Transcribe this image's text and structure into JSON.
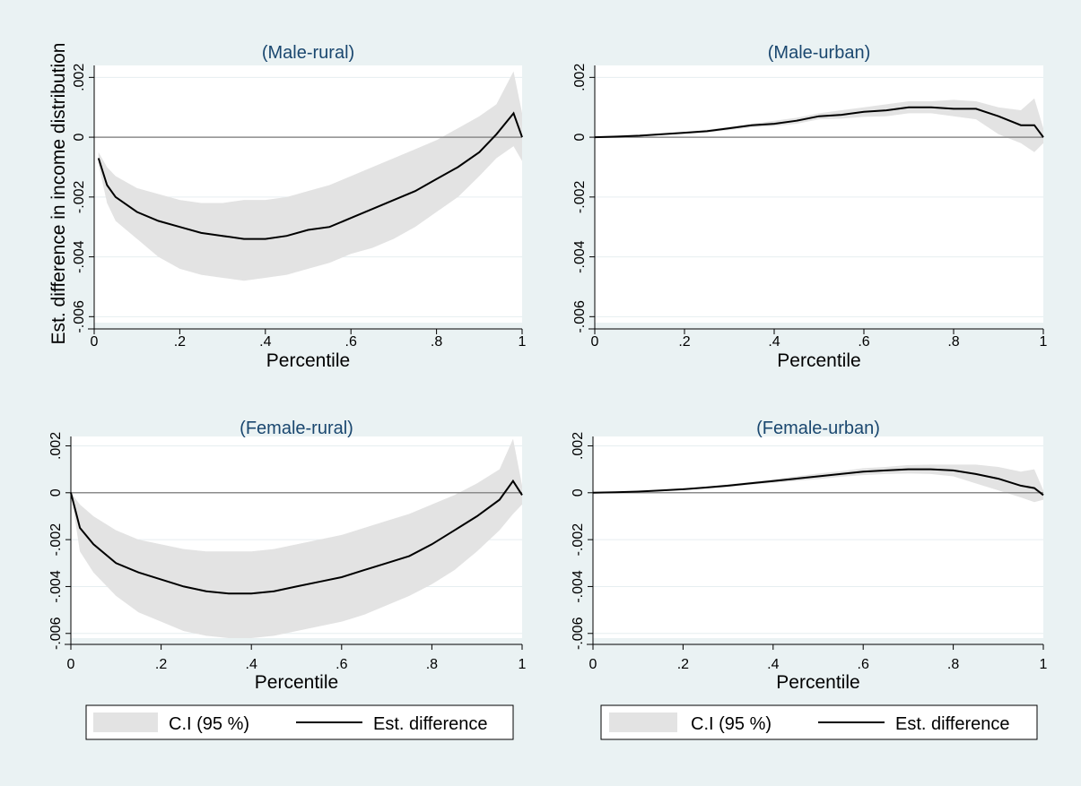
{
  "ylabel_shared": "Est. difference in income distribution",
  "colors": {
    "background": "#eaf2f3",
    "plot_bg": "#ffffff",
    "ci_band": "#e3e3e3",
    "line": "#000000",
    "zero_line": "#8c8c8c",
    "title": "#1a476f",
    "grid": "#e6eef0"
  },
  "chart_data": [
    {
      "type": "line",
      "title": "(Male-rural)",
      "xlabel": "Percentile",
      "ylabel": "Est. difference in income distribution",
      "xlim": [
        0,
        1
      ],
      "ylim": [
        -0.0062,
        0.0024
      ],
      "xticks": [
        0,
        0.2,
        0.4,
        0.6,
        0.8,
        1
      ],
      "xtick_labels": [
        "0",
        ".2",
        ".4",
        ".6",
        ".8",
        "1"
      ],
      "yticks": [
        -0.006,
        -0.004,
        -0.002,
        0,
        0.002
      ],
      "ytick_labels": [
        "-.006",
        "-.004",
        "-.002",
        "0",
        ".002"
      ],
      "grid": true,
      "x": [
        0.01,
        0.03,
        0.05,
        0.1,
        0.15,
        0.2,
        0.25,
        0.3,
        0.35,
        0.4,
        0.45,
        0.5,
        0.55,
        0.6,
        0.65,
        0.7,
        0.75,
        0.8,
        0.85,
        0.9,
        0.94,
        0.98,
        1
      ],
      "series": [
        {
          "type": "line",
          "values": [
            -0.0007,
            -0.0016,
            -0.002,
            -0.0025,
            -0.0028,
            -0.003,
            -0.0032,
            -0.0033,
            -0.0034,
            -0.0034,
            -0.0033,
            -0.0031,
            -0.003,
            -0.0027,
            -0.0024,
            -0.0021,
            -0.0018,
            -0.0014,
            -0.001,
            -0.0005,
            0.0001,
            0.0008,
            0
          ]
        },
        {
          "type": "ci_upper",
          "values": [
            -0.0005,
            -0.001,
            -0.0013,
            -0.0017,
            -0.0019,
            -0.0021,
            -0.0022,
            -0.0022,
            -0.0021,
            -0.0021,
            -0.002,
            -0.0018,
            -0.0016,
            -0.0013,
            -0.001,
            -0.0007,
            -0.0004,
            -0.0001,
            0.0003,
            0.0007,
            0.0011,
            0.0022,
            0.0008
          ]
        },
        {
          "type": "ci_lower",
          "values": [
            -0.0009,
            -0.0022,
            -0.0028,
            -0.0034,
            -0.004,
            -0.0044,
            -0.0046,
            -0.0047,
            -0.0048,
            -0.0047,
            -0.0046,
            -0.0044,
            -0.0042,
            -0.0039,
            -0.0037,
            -0.0034,
            -0.003,
            -0.0025,
            -0.002,
            -0.0013,
            -0.0007,
            -0.0003,
            -0.0008
          ]
        }
      ],
      "legend": [
        "C.I (95 %)",
        "Est. difference"
      ]
    },
    {
      "type": "line",
      "title": "(Male-urban)",
      "xlabel": "Percentile",
      "ylabel": "",
      "xlim": [
        0,
        1
      ],
      "ylim": [
        -0.0062,
        0.0024
      ],
      "xticks": [
        0,
        0.2,
        0.4,
        0.6,
        0.8,
        1
      ],
      "xtick_labels": [
        "0",
        ".2",
        ".4",
        ".6",
        ".8",
        "1"
      ],
      "yticks": [
        -0.006,
        -0.004,
        -0.002,
        0,
        0.002
      ],
      "ytick_labels": [
        "-.006",
        "-.004",
        "-.002",
        "0",
        ".002"
      ],
      "grid": true,
      "x": [
        0,
        0.05,
        0.1,
        0.15,
        0.2,
        0.25,
        0.3,
        0.35,
        0.4,
        0.45,
        0.5,
        0.55,
        0.6,
        0.65,
        0.7,
        0.75,
        0.8,
        0.85,
        0.9,
        0.95,
        0.98,
        1
      ],
      "series": [
        {
          "type": "line",
          "values": [
            0,
            2e-05,
            5e-05,
            0.0001,
            0.00015,
            0.0002,
            0.0003,
            0.0004,
            0.00045,
            0.00055,
            0.0007,
            0.00075,
            0.00085,
            0.0009,
            0.001,
            0.001,
            0.00095,
            0.00095,
            0.0007,
            0.0004,
            0.0004,
            0
          ]
        },
        {
          "type": "ci_upper",
          "values": [
            0,
            3e-05,
            7e-05,
            0.00012,
            0.00018,
            0.00025,
            0.00035,
            0.00045,
            0.00055,
            0.00065,
            0.0008,
            0.0009,
            0.001,
            0.0011,
            0.0012,
            0.0012,
            0.00125,
            0.0012,
            0.001,
            0.0009,
            0.0013,
            0.0003
          ]
        },
        {
          "type": "ci_lower",
          "values": [
            0,
            1e-05,
            3e-05,
            8e-05,
            0.00012,
            0.00016,
            0.00024,
            0.00033,
            0.00037,
            0.00045,
            0.0006,
            0.00062,
            0.00068,
            0.0007,
            0.0008,
            0.0008,
            0.0007,
            0.0006,
            0.0001,
            -0.0002,
            -0.0005,
            -0.0002
          ]
        }
      ],
      "legend": [
        "C.I (95 %)",
        "Est. difference"
      ]
    },
    {
      "type": "line",
      "title": "(Female-rural)",
      "xlabel": "Percentile",
      "ylabel": "",
      "xlim": [
        0,
        1
      ],
      "ylim": [
        -0.0062,
        0.0024
      ],
      "xticks": [
        0,
        0.2,
        0.4,
        0.6,
        0.8,
        1
      ],
      "xtick_labels": [
        "0",
        ".2",
        ".4",
        ".6",
        ".8",
        "1"
      ],
      "yticks": [
        -0.006,
        -0.004,
        -0.002,
        0,
        0.002
      ],
      "ytick_labels": [
        "-.006",
        "-.004",
        "-.002",
        "0",
        ".002"
      ],
      "grid": true,
      "x": [
        0,
        0.02,
        0.05,
        0.1,
        0.15,
        0.2,
        0.25,
        0.3,
        0.35,
        0.4,
        0.45,
        0.5,
        0.55,
        0.6,
        0.65,
        0.7,
        0.75,
        0.8,
        0.85,
        0.9,
        0.95,
        0.98,
        1
      ],
      "series": [
        {
          "type": "line",
          "values": [
            0,
            -0.0015,
            -0.0022,
            -0.003,
            -0.0034,
            -0.0037,
            -0.004,
            -0.0042,
            -0.0043,
            -0.0043,
            -0.0042,
            -0.004,
            -0.0038,
            -0.0036,
            -0.0033,
            -0.003,
            -0.0027,
            -0.0022,
            -0.0016,
            -0.001,
            -0.0003,
            0.0005,
            -0.0001
          ]
        },
        {
          "type": "ci_upper",
          "values": [
            0,
            -0.0005,
            -0.001,
            -0.0016,
            -0.002,
            -0.0022,
            -0.0024,
            -0.0025,
            -0.0025,
            -0.0025,
            -0.0024,
            -0.0022,
            -0.002,
            -0.0018,
            -0.0015,
            -0.0012,
            -0.0009,
            -0.0005,
            -0.0001,
            0.0004,
            0.001,
            0.0023,
            0.0003
          ]
        },
        {
          "type": "ci_lower",
          "values": [
            0,
            -0.0025,
            -0.0034,
            -0.0044,
            -0.0051,
            -0.0055,
            -0.0059,
            -0.0061,
            -0.0062,
            -0.0062,
            -0.0061,
            -0.0059,
            -0.0057,
            -0.0055,
            -0.0052,
            -0.0048,
            -0.0044,
            -0.0039,
            -0.0033,
            -0.0025,
            -0.0016,
            -0.0009,
            -0.0005
          ]
        }
      ],
      "legend": [
        "C.I (95 %)",
        "Est. difference"
      ]
    },
    {
      "type": "line",
      "title": "(Female-urban)",
      "xlabel": "Percentile",
      "ylabel": "",
      "xlim": [
        0,
        1
      ],
      "ylim": [
        -0.0062,
        0.0024
      ],
      "xticks": [
        0,
        0.2,
        0.4,
        0.6,
        0.8,
        1
      ],
      "xtick_labels": [
        "0",
        ".2",
        ".4",
        ".6",
        ".8",
        "1"
      ],
      "yticks": [
        -0.006,
        -0.004,
        -0.002,
        0,
        0.002
      ],
      "ytick_labels": [
        "-.006",
        "-.004",
        "-.002",
        "0",
        ".002"
      ],
      "grid": true,
      "x": [
        0,
        0.05,
        0.1,
        0.15,
        0.2,
        0.25,
        0.3,
        0.35,
        0.4,
        0.45,
        0.5,
        0.55,
        0.6,
        0.65,
        0.7,
        0.75,
        0.8,
        0.85,
        0.9,
        0.95,
        0.98,
        1
      ],
      "series": [
        {
          "type": "line",
          "values": [
            0,
            2e-05,
            5e-05,
            0.0001,
            0.00015,
            0.00022,
            0.0003,
            0.0004,
            0.0005,
            0.0006,
            0.0007,
            0.0008,
            0.0009,
            0.00095,
            0.001,
            0.001,
            0.00095,
            0.0008,
            0.0006,
            0.0003,
            0.0002,
            -0.0001
          ]
        },
        {
          "type": "ci_upper",
          "values": [
            0,
            3e-05,
            7e-05,
            0.00012,
            0.00018,
            0.00026,
            0.00036,
            0.00046,
            0.00058,
            0.0007,
            0.00082,
            0.00092,
            0.00105,
            0.0011,
            0.00118,
            0.0012,
            0.0012,
            0.0012,
            0.0011,
            0.0009,
            0.001,
            0.0001
          ]
        },
        {
          "type": "ci_lower",
          "values": [
            0,
            1e-05,
            3e-05,
            8e-05,
            0.00012,
            0.00018,
            0.00024,
            0.00034,
            0.00042,
            0.0005,
            0.00058,
            0.00068,
            0.00075,
            0.0008,
            0.00082,
            0.0008,
            0.0007,
            0.0004,
            0.0001,
            -0.0002,
            -0.0004,
            -0.0003
          ]
        }
      ],
      "legend": [
        "C.I (95 %)",
        "Est. difference"
      ]
    }
  ]
}
